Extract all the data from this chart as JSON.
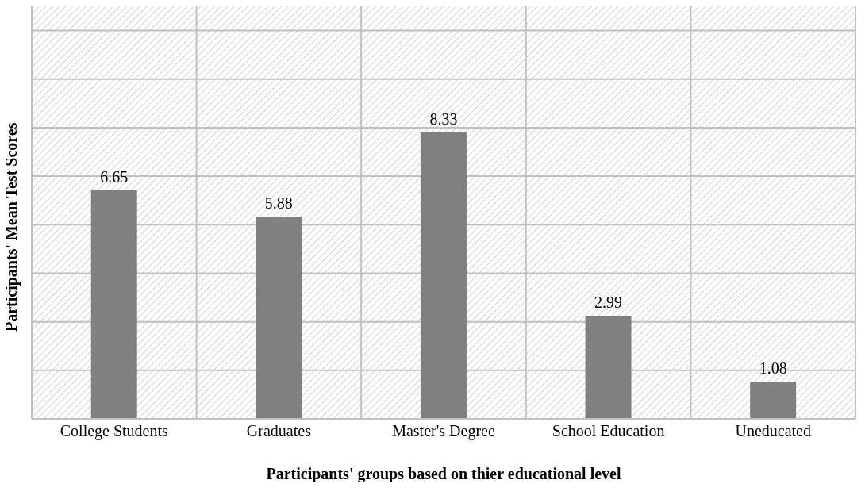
{
  "chart_data": {
    "type": "bar",
    "xlabel": "Participants' groups based on thier educational level",
    "ylabel": "Participants' Mean Test Scores",
    "categories": [
      "College Students",
      "Graduates",
      "Master's Degree",
      "School Education",
      "Uneducated"
    ],
    "values": [
      6.65,
      5.88,
      8.33,
      2.99,
      1.08
    ],
    "color": "#808080",
    "data_labels": true,
    "tick_labels": "x",
    "grid": true
  }
}
